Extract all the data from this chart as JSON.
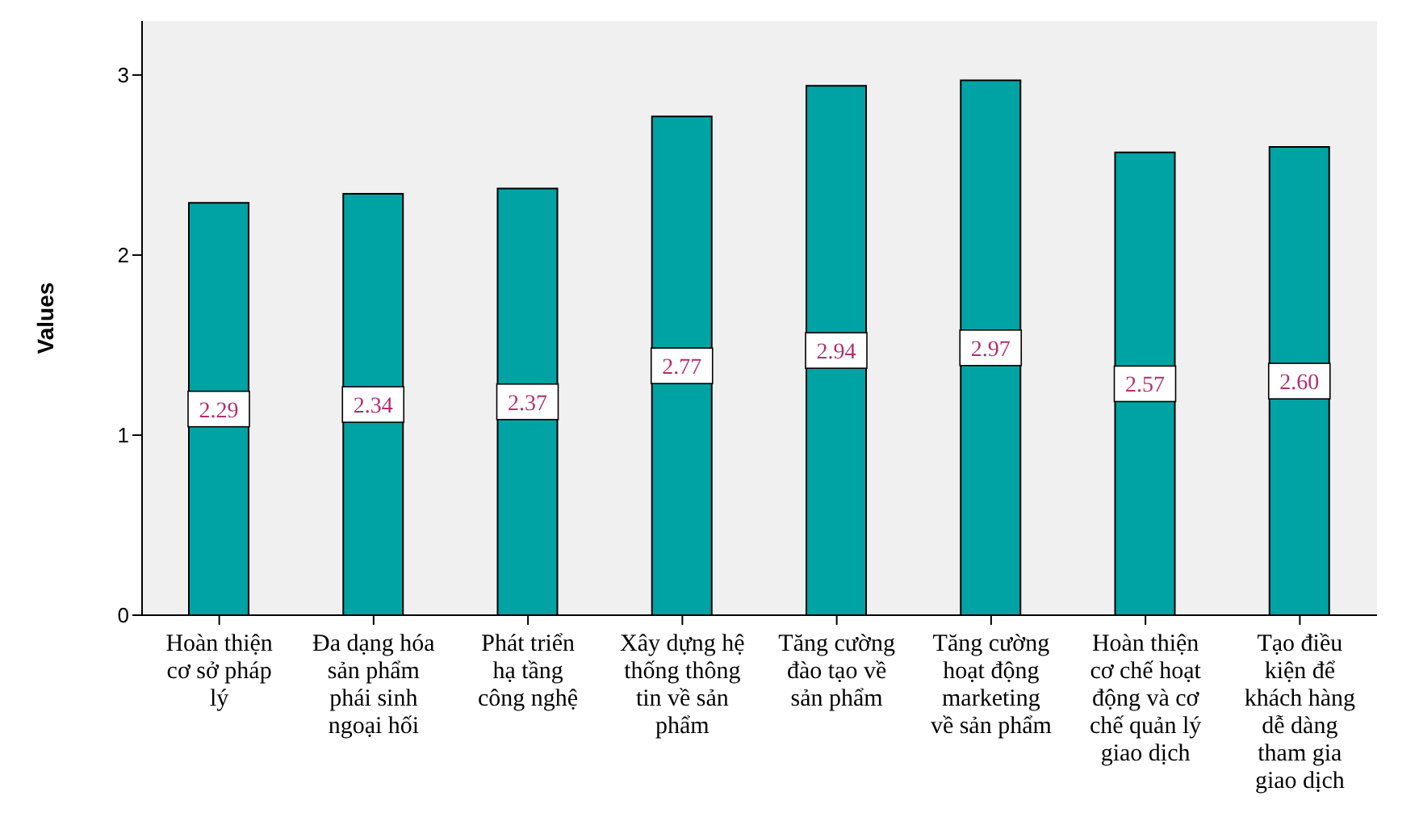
{
  "chart_data": {
    "type": "bar",
    "ylabel": "Values",
    "categories": [
      "Hoàn thiện cơ sở pháp lý",
      "Đa dạng hóa sản phẩm phái sinh ngoại hối",
      "Phát triển hạ tầng công nghệ",
      "Xây dựng hệ thống thông tin về sản phẩm",
      "Tăng cường đào tạo về sản phẩm",
      "Tăng cường hoạt động marketing về sản phẩm",
      "Hoàn thiện cơ chế hoạt động và cơ chế quản lý giao dịch",
      "Tạo điều kiện để khách hàng dễ dàng tham gia giao dịch"
    ],
    "values": [
      2.29,
      2.34,
      2.37,
      2.77,
      2.94,
      2.97,
      2.57,
      2.6
    ],
    "value_labels": [
      "2.29",
      "2.34",
      "2.37",
      "2.77",
      "2.94",
      "2.97",
      "2.57",
      "2.60"
    ],
    "color": "#00a3a3",
    "ylim": [
      0,
      3.3
    ],
    "yticks": [
      0,
      1,
      2,
      3
    ]
  }
}
